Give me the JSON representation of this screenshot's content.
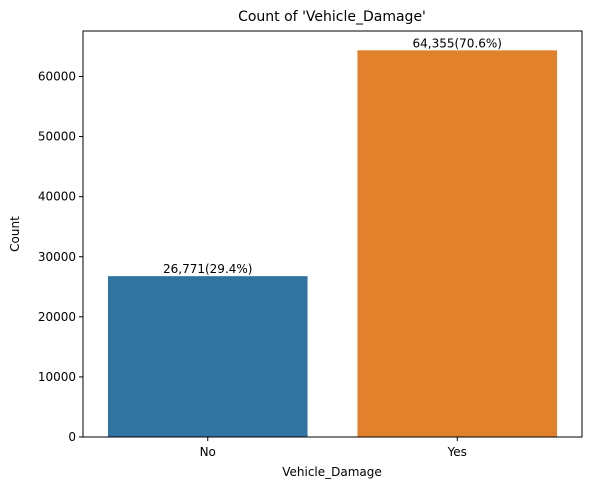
{
  "chart_data": {
    "type": "bar",
    "title": "Count of 'Vehicle_Damage'",
    "xlabel": "Vehicle_Damage",
    "ylabel": "Count",
    "categories": [
      "No",
      "Yes"
    ],
    "values": [
      26771,
      64355
    ],
    "data_labels": [
      "26,771(29.4%)",
      "64,355(70.6%)"
    ],
    "colors": [
      "#3274a1",
      "#e1812c"
    ],
    "ylim": [
      0,
      67573
    ],
    "yticks": [
      0,
      10000,
      20000,
      30000,
      40000,
      50000,
      60000
    ],
    "ytick_labels": [
      "0",
      "10000",
      "20000",
      "30000",
      "40000",
      "50000",
      "60000"
    ],
    "grid": false,
    "legend": false
  }
}
